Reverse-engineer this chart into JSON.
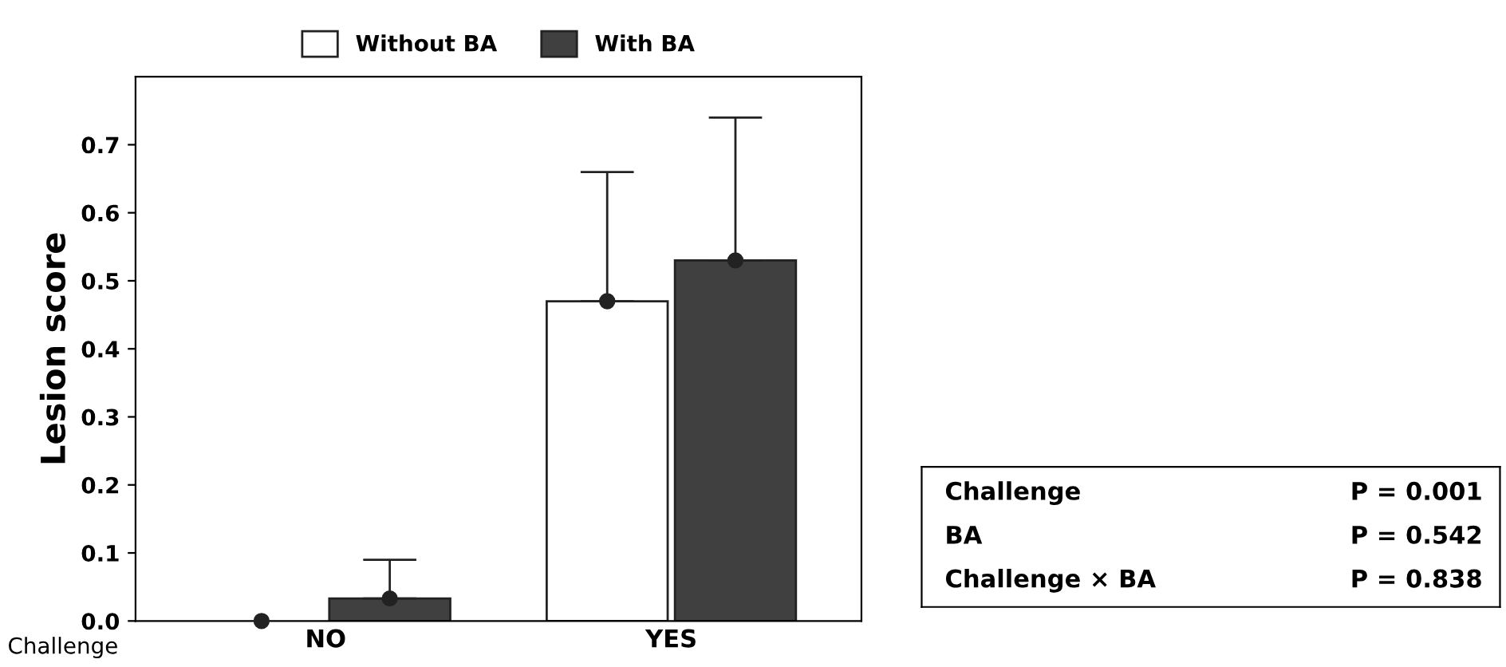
{
  "chart_data": {
    "type": "bar",
    "xlabel": "Challenge",
    "ylabel": "Lesion score",
    "categories": [
      "NO",
      "YES"
    ],
    "series": [
      {
        "name": "Without BA",
        "color": "#ffffff",
        "values": [
          0,
          0.47
        ],
        "errors": [
          null,
          [
            0.47,
            0.66
          ]
        ]
      },
      {
        "name": "With BA",
        "color": "#404040",
        "values": [
          0.033,
          0.53
        ],
        "errors": [
          [
            0.033,
            0.09
          ],
          [
            0.53,
            0.74
          ]
        ]
      },
      {
        "type": "scatter",
        "color": "#222222",
        "x": [
          "NO",
          "YES"
        ],
        "values": [
          0,
          0.47
        ]
      },
      {
        "type": "scatter",
        "color": "#222222",
        "x": [
          "NO",
          "YES"
        ],
        "values": [
          0.033,
          0.53
        ]
      }
    ],
    "marker": "circle",
    "ylim": [
      0,
      0.8
    ],
    "yticks": [
      {
        "value": 0,
        "label": "0.0"
      },
      0.1,
      0.2,
      0.3,
      0.4,
      0.5,
      0.6,
      0.7
    ],
    "legend": "top",
    "grid": false,
    "annotations": [
      "Challenge",
      "P = 0.001",
      "BA",
      "P = 0.542",
      "Challenge × BA",
      "P = 0.838"
    ]
  }
}
